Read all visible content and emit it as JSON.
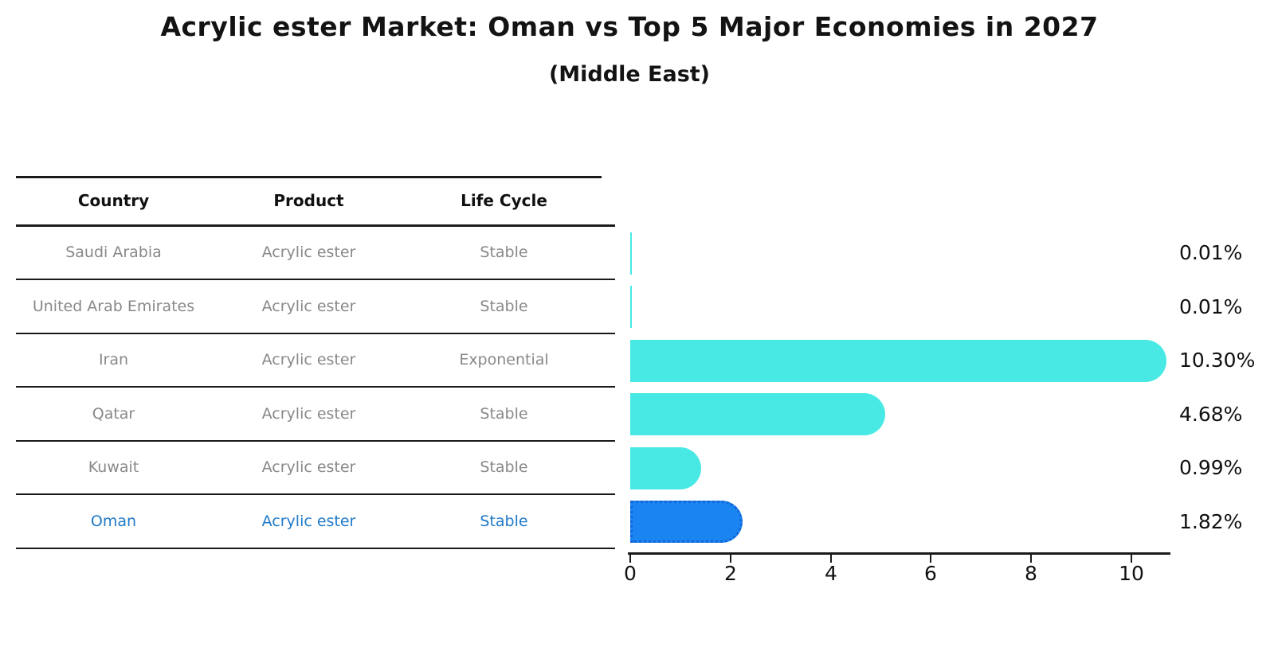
{
  "title": "Acrylic ester Market: Oman vs Top 5 Major Economies in 2027",
  "subtitle": "(Middle East)",
  "table": {
    "headers": [
      "Country",
      "Product",
      "Life Cycle"
    ],
    "rows": [
      {
        "country": "Saudi Arabia",
        "product": "Acrylic ester",
        "life_cycle": "Stable",
        "highlighted": false
      },
      {
        "country": "United Arab Emirates",
        "product": "Acrylic ester",
        "life_cycle": "Stable",
        "highlighted": false
      },
      {
        "country": "Iran",
        "product": "Acrylic ester",
        "life_cycle": "Exponential",
        "highlighted": false
      },
      {
        "country": "Qatar",
        "product": "Acrylic ester",
        "life_cycle": "Stable",
        "highlighted": false
      },
      {
        "country": "Kuwait",
        "product": "Acrylic ester",
        "life_cycle": "Stable",
        "highlighted": false
      },
      {
        "country": "Oman",
        "product": "Acrylic ester",
        "life_cycle": "Stable",
        "highlighted": true
      }
    ]
  },
  "chart_data": {
    "type": "bar",
    "orientation": "horizontal",
    "categories": [
      "Saudi Arabia",
      "United Arab Emirates",
      "Iran",
      "Qatar",
      "Kuwait",
      "Oman"
    ],
    "values": [
      0.01,
      0.01,
      10.3,
      4.68,
      0.99,
      1.82
    ],
    "value_labels": [
      "0.01%",
      "0.01%",
      "10.30%",
      "4.68%",
      "0.99%",
      "1.82%"
    ],
    "x_ticks": [
      "0",
      "2",
      "4",
      "6",
      "8",
      "10"
    ],
    "xlim": [
      0,
      10.8
    ],
    "grid": false,
    "legend": "none",
    "highlight_index": 5,
    "title": "Acrylic ester Market: Oman vs Top 5 Major Economies in 2027",
    "xlabel": "",
    "ylabel": ""
  },
  "colors": {
    "bar_default": "#48e9e4",
    "bar_highlight": "#1a85f0",
    "bar_highlight_border": "#1365d8",
    "highlight_text": "#1f7ac9",
    "table_text": "#898989",
    "heading_text": "#131313"
  }
}
